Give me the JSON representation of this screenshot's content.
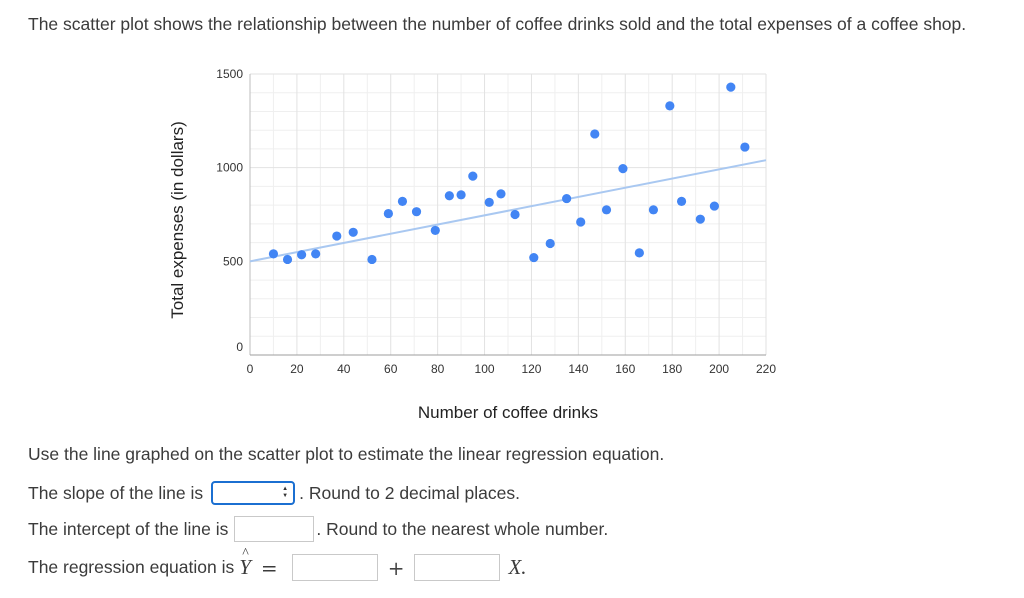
{
  "intro_text": "The scatter plot shows the relationship between the number of coffee drinks sold and the total expenses of a coffee shop.",
  "instruction": "Use the line graphed on the scatter plot to estimate the linear regression equation.",
  "slope": {
    "label": "The slope of the line is",
    "value": "",
    "suffix": ". Round to 2 decimal places."
  },
  "intercept": {
    "label": "The intercept of the line is",
    "value": "",
    "suffix": ". Round to the nearest whole number."
  },
  "equation": {
    "label": "The regression equation is",
    "y_symbol": "Y",
    "equals": "=",
    "plus": "+",
    "x_symbol": "X",
    "end": "."
  },
  "colors": {
    "point": "#4285f4",
    "trendline": "#a9c8f1",
    "grid": "#e2e2e2",
    "input_border_active": "#1b6fd1"
  },
  "chart_data": {
    "type": "scatter",
    "xlabel": "Number of coffee drinks",
    "ylabel": "Total expenses (in dollars)",
    "xlim": [
      0,
      220
    ],
    "ylim": [
      0,
      1500
    ],
    "x_ticks": [
      "0",
      "20",
      "40",
      "60",
      "80",
      "100",
      "120",
      "140",
      "160",
      "180",
      "200",
      "220"
    ],
    "y_ticks": [
      "0",
      "500",
      "1000",
      "1500"
    ],
    "grid": true,
    "points": [
      {
        "x": 10,
        "y": 540
      },
      {
        "x": 16,
        "y": 510
      },
      {
        "x": 22,
        "y": 535
      },
      {
        "x": 28,
        "y": 540
      },
      {
        "x": 37,
        "y": 635
      },
      {
        "x": 44,
        "y": 655
      },
      {
        "x": 52,
        "y": 510
      },
      {
        "x": 59,
        "y": 755
      },
      {
        "x": 65,
        "y": 820
      },
      {
        "x": 71,
        "y": 765
      },
      {
        "x": 79,
        "y": 665
      },
      {
        "x": 85,
        "y": 850
      },
      {
        "x": 90,
        "y": 855
      },
      {
        "x": 95,
        "y": 955
      },
      {
        "x": 102,
        "y": 815
      },
      {
        "x": 107,
        "y": 860
      },
      {
        "x": 113,
        "y": 750
      },
      {
        "x": 121,
        "y": 520
      },
      {
        "x": 128,
        "y": 595
      },
      {
        "x": 135,
        "y": 835
      },
      {
        "x": 141,
        "y": 710
      },
      {
        "x": 147,
        "y": 1180
      },
      {
        "x": 152,
        "y": 775
      },
      {
        "x": 159,
        "y": 995
      },
      {
        "x": 166,
        "y": 545
      },
      {
        "x": 172,
        "y": 775
      },
      {
        "x": 179,
        "y": 1330
      },
      {
        "x": 184,
        "y": 820
      },
      {
        "x": 192,
        "y": 725
      },
      {
        "x": 198,
        "y": 795
      },
      {
        "x": 205,
        "y": 1430
      },
      {
        "x": 211,
        "y": 1110
      }
    ],
    "trendline": [
      {
        "x": 0,
        "y": 500
      },
      {
        "x": 220,
        "y": 1040
      }
    ]
  }
}
